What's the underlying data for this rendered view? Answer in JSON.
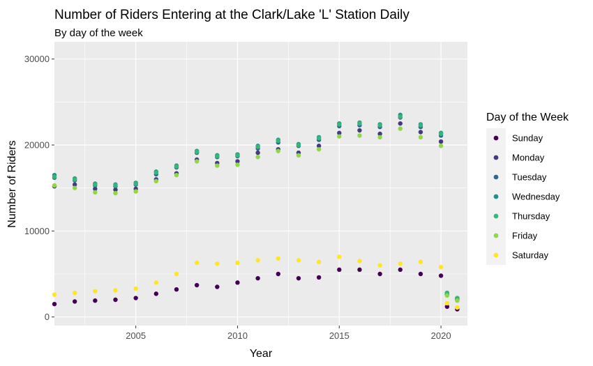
{
  "chart_data": {
    "type": "scatter",
    "title": "Number of Riders Entering at the Clark/Lake 'L' Station Daily",
    "subtitle": "By day of the week",
    "xlabel": "Year",
    "ylabel": "Number of Riders",
    "xlim": [
      2001.0,
      2021.3
    ],
    "ylim": [
      -1000,
      32000
    ],
    "x_ticks": [
      2005,
      2010,
      2015,
      2020
    ],
    "x_tick_labels": [
      "2005",
      "2010",
      "2015",
      "2020"
    ],
    "y_ticks": [
      0,
      10000,
      20000,
      30000
    ],
    "y_tick_labels": [
      "0",
      "10000",
      "20000",
      "30000"
    ],
    "grid": true,
    "legend": {
      "title": "Day of the Week",
      "position": "right"
    },
    "series": [
      {
        "name": "Sunday",
        "color": "#440154",
        "x": [
          2001.0,
          2002.0,
          2003.0,
          2004.0,
          2005.0,
          2006.0,
          2007.0,
          2008.0,
          2009.0,
          2010.0,
          2011.0,
          2012.0,
          2013.0,
          2014.0,
          2015.0,
          2016.0,
          2017.0,
          2018.0,
          2019.0,
          2020.0,
          2020.3,
          2020.8
        ],
        "y": [
          1500,
          1800,
          1900,
          2000,
          2200,
          2700,
          3200,
          3700,
          3500,
          4000,
          4500,
          5000,
          4500,
          4600,
          5500,
          5500,
          5000,
          5500,
          5000,
          4800,
          1200,
          900
        ]
      },
      {
        "name": "Monday",
        "color": "#443A83",
        "x": [
          2001.0,
          2002.0,
          2003.0,
          2004.0,
          2005.0,
          2006.0,
          2007.0,
          2008.0,
          2009.0,
          2010.0,
          2011.0,
          2012.0,
          2013.0,
          2014.0,
          2015.0,
          2016.0,
          2017.0,
          2018.0,
          2019.0,
          2020.0,
          2020.3,
          2020.8
        ],
        "y": [
          15200,
          15400,
          14900,
          14800,
          14900,
          16000,
          16700,
          18300,
          17900,
          18100,
          19100,
          19500,
          19100,
          19900,
          21400,
          21700,
          21300,
          22500,
          21500,
          20400,
          2600,
          2000
        ]
      },
      {
        "name": "Tuesday",
        "color": "#31688E",
        "x": [
          2001.0,
          2002.0,
          2003.0,
          2004.0,
          2005.0,
          2006.0,
          2007.0,
          2008.0,
          2009.0,
          2010.0,
          2011.0,
          2012.0,
          2013.0,
          2014.0,
          2015.0,
          2016.0,
          2017.0,
          2018.0,
          2019.0,
          2020.0,
          2020.3,
          2020.8
        ],
        "y": [
          16200,
          15900,
          15300,
          15200,
          15400,
          16600,
          17400,
          19100,
          18600,
          18700,
          19600,
          20300,
          19900,
          20600,
          22200,
          22300,
          22100,
          23200,
          22100,
          21100,
          2700,
          2100
        ]
      },
      {
        "name": "Wednesday",
        "color": "#21908C",
        "x": [
          2001.0,
          2002.0,
          2003.0,
          2004.0,
          2005.0,
          2006.0,
          2007.0,
          2008.0,
          2009.0,
          2010.0,
          2011.0,
          2012.0,
          2013.0,
          2014.0,
          2015.0,
          2016.0,
          2017.0,
          2018.0,
          2019.0,
          2020.0,
          2020.3,
          2020.8
        ],
        "y": [
          16500,
          16100,
          15500,
          15400,
          15600,
          16900,
          17600,
          19300,
          18800,
          18900,
          19900,
          20600,
          20100,
          20900,
          22500,
          22600,
          22400,
          23500,
          22400,
          21400,
          2800,
          2200
        ]
      },
      {
        "name": "Thursday",
        "color": "#35B779",
        "x": [
          2001.0,
          2002.0,
          2003.0,
          2004.0,
          2005.0,
          2006.0,
          2007.0,
          2008.0,
          2009.0,
          2010.0,
          2011.0,
          2012.0,
          2013.0,
          2014.0,
          2015.0,
          2016.0,
          2017.0,
          2018.0,
          2019.0,
          2020.0,
          2020.3,
          2020.8
        ],
        "y": [
          16300,
          16000,
          15400,
          15300,
          15500,
          16800,
          17500,
          19200,
          18700,
          18800,
          19800,
          20500,
          20000,
          20800,
          22400,
          22500,
          22300,
          23300,
          22300,
          21300,
          2800,
          2200
        ]
      },
      {
        "name": "Friday",
        "color": "#8FD744",
        "x": [
          2001.0,
          2002.0,
          2003.0,
          2004.0,
          2005.0,
          2006.0,
          2007.0,
          2008.0,
          2009.0,
          2010.0,
          2011.0,
          2012.0,
          2013.0,
          2014.0,
          2015.0,
          2016.0,
          2017.0,
          2018.0,
          2019.0,
          2020.0,
          2020.3,
          2020.8
        ],
        "y": [
          15300,
          15000,
          14500,
          14400,
          14600,
          15800,
          16500,
          18100,
          17600,
          17700,
          18600,
          19300,
          18800,
          19500,
          21000,
          21100,
          20900,
          21900,
          20900,
          19900,
          2500,
          1900
        ]
      },
      {
        "name": "Saturday",
        "color": "#FDE725",
        "x": [
          2001.0,
          2002.0,
          2003.0,
          2004.0,
          2005.0,
          2006.0,
          2007.0,
          2008.0,
          2009.0,
          2010.0,
          2011.0,
          2012.0,
          2013.0,
          2014.0,
          2015.0,
          2016.0,
          2017.0,
          2018.0,
          2019.0,
          2020.0,
          2020.3,
          2020.8
        ],
        "y": [
          2600,
          2800,
          3000,
          3100,
          3300,
          4000,
          5000,
          6300,
          6200,
          6300,
          6600,
          6800,
          6600,
          6400,
          7000,
          6500,
          6000,
          6200,
          6400,
          5800,
          1600,
          1100
        ]
      }
    ]
  }
}
